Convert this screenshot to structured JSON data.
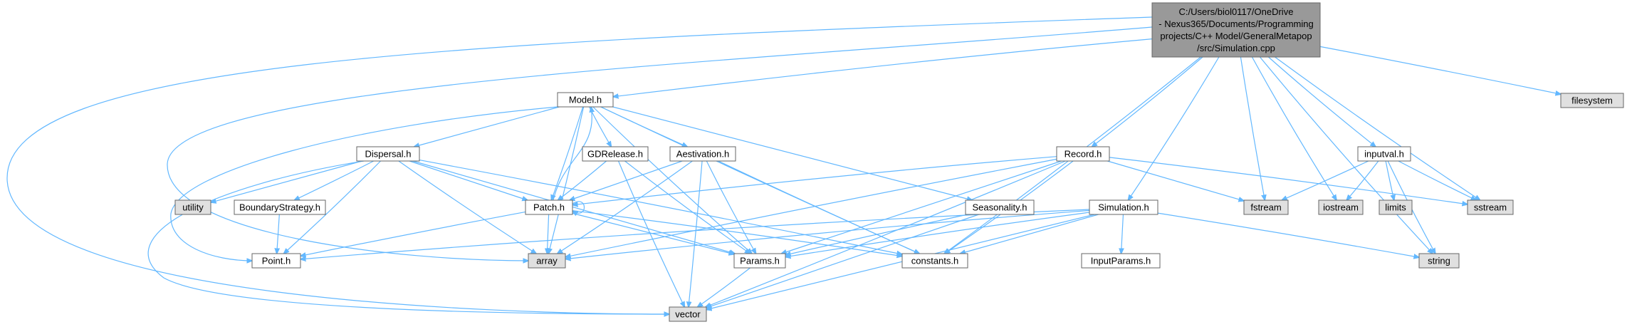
{
  "colors": {
    "main": "#999999",
    "local": "#ffffff",
    "system": "#e0e0e0",
    "edge": "#63b8ff",
    "border": "#666666"
  },
  "nodes": [
    {
      "id": "simcpp",
      "lines": [
        "C:/Users/biol0117/OneDrive",
        "- Nexus365/Documents/Programming",
        "projects/C++ Model/GeneralMetapop",
        "/src/Simulation.cpp"
      ],
      "kind": "main"
    },
    {
      "id": "model",
      "lines": [
        "Model.h"
      ],
      "kind": "local"
    },
    {
      "id": "dispersal",
      "lines": [
        "Dispersal.h"
      ],
      "kind": "local"
    },
    {
      "id": "gdrelease",
      "lines": [
        "GDRelease.h"
      ],
      "kind": "local"
    },
    {
      "id": "aestivation",
      "lines": [
        "Aestivation.h"
      ],
      "kind": "local"
    },
    {
      "id": "seasonality",
      "lines": [
        "Seasonality.h"
      ],
      "kind": "local"
    },
    {
      "id": "record",
      "lines": [
        "Record.h"
      ],
      "kind": "local"
    },
    {
      "id": "simulation",
      "lines": [
        "Simulation.h"
      ],
      "kind": "local"
    },
    {
      "id": "inputval",
      "lines": [
        "inputval.h"
      ],
      "kind": "local"
    },
    {
      "id": "filesystem",
      "lines": [
        "filesystem"
      ],
      "kind": "system"
    },
    {
      "id": "utility",
      "lines": [
        "utility"
      ],
      "kind": "system"
    },
    {
      "id": "boundary",
      "lines": [
        "BoundaryStrategy.h"
      ],
      "kind": "local"
    },
    {
      "id": "patch",
      "lines": [
        "Patch.h"
      ],
      "kind": "local"
    },
    {
      "id": "point",
      "lines": [
        "Point.h"
      ],
      "kind": "local"
    },
    {
      "id": "array",
      "lines": [
        "array"
      ],
      "kind": "system"
    },
    {
      "id": "params",
      "lines": [
        "Params.h"
      ],
      "kind": "local"
    },
    {
      "id": "constants",
      "lines": [
        "constants.h"
      ],
      "kind": "local"
    },
    {
      "id": "inputparams",
      "lines": [
        "InputParams.h"
      ],
      "kind": "local"
    },
    {
      "id": "fstream",
      "lines": [
        "fstream"
      ],
      "kind": "system"
    },
    {
      "id": "iostream",
      "lines": [
        "iostream"
      ],
      "kind": "system"
    },
    {
      "id": "limits",
      "lines": [
        "limits"
      ],
      "kind": "system"
    },
    {
      "id": "sstream",
      "lines": [
        "sstream"
      ],
      "kind": "system"
    },
    {
      "id": "string",
      "lines": [
        "string"
      ],
      "kind": "system"
    },
    {
      "id": "vector",
      "lines": [
        "vector"
      ],
      "kind": "system"
    }
  ],
  "edges": [
    [
      "simcpp",
      "model"
    ],
    [
      "simcpp",
      "record"
    ],
    [
      "simcpp",
      "simulation"
    ],
    [
      "simcpp",
      "inputval"
    ],
    [
      "simcpp",
      "filesystem"
    ],
    [
      "simcpp",
      "fstream"
    ],
    [
      "simcpp",
      "iostream"
    ],
    [
      "simcpp",
      "sstream"
    ],
    [
      "simcpp",
      "string"
    ],
    [
      "simcpp",
      "vector"
    ],
    [
      "simcpp",
      "array"
    ],
    [
      "simcpp",
      "constants"
    ],
    [
      "model",
      "dispersal"
    ],
    [
      "model",
      "gdrelease"
    ],
    [
      "model",
      "aestivation"
    ],
    [
      "model",
      "seasonality"
    ],
    [
      "model",
      "patch"
    ],
    [
      "model",
      "point"
    ],
    [
      "model",
      "array"
    ],
    [
      "model",
      "params"
    ],
    [
      "model",
      "constants"
    ],
    [
      "dispersal",
      "utility"
    ],
    [
      "dispersal",
      "boundary"
    ],
    [
      "dispersal",
      "patch"
    ],
    [
      "dispersal",
      "point"
    ],
    [
      "dispersal",
      "array"
    ],
    [
      "dispersal",
      "params"
    ],
    [
      "dispersal",
      "constants"
    ],
    [
      "dispersal",
      "vector"
    ],
    [
      "boundary",
      "point"
    ],
    [
      "gdrelease",
      "patch"
    ],
    [
      "gdrelease",
      "params"
    ],
    [
      "gdrelease",
      "vector"
    ],
    [
      "aestivation",
      "patch"
    ],
    [
      "aestivation",
      "params"
    ],
    [
      "aestivation",
      "array"
    ],
    [
      "aestivation",
      "vector"
    ],
    [
      "aestivation",
      "constants"
    ],
    [
      "patch",
      "model"
    ],
    [
      "patch",
      "patch"
    ],
    [
      "patch",
      "point"
    ],
    [
      "patch",
      "array"
    ],
    [
      "patch",
      "params"
    ],
    [
      "patch",
      "constants"
    ],
    [
      "seasonality",
      "params"
    ],
    [
      "seasonality",
      "vector"
    ],
    [
      "record",
      "patch"
    ],
    [
      "record",
      "params"
    ],
    [
      "record",
      "array"
    ],
    [
      "record",
      "constants"
    ],
    [
      "record",
      "fstream"
    ],
    [
      "record",
      "sstream"
    ],
    [
      "record",
      "vector"
    ],
    [
      "simulation",
      "inputparams"
    ],
    [
      "simulation",
      "params"
    ],
    [
      "simulation",
      "constants"
    ],
    [
      "simulation",
      "point"
    ],
    [
      "simulation",
      "array"
    ],
    [
      "simulation",
      "vector"
    ],
    [
      "simulation",
      "string"
    ],
    [
      "inputval",
      "fstream"
    ],
    [
      "inputval",
      "iostream"
    ],
    [
      "inputval",
      "limits"
    ],
    [
      "inputval",
      "sstream"
    ],
    [
      "inputval",
      "string"
    ],
    [
      "params",
      "vector"
    ]
  ]
}
